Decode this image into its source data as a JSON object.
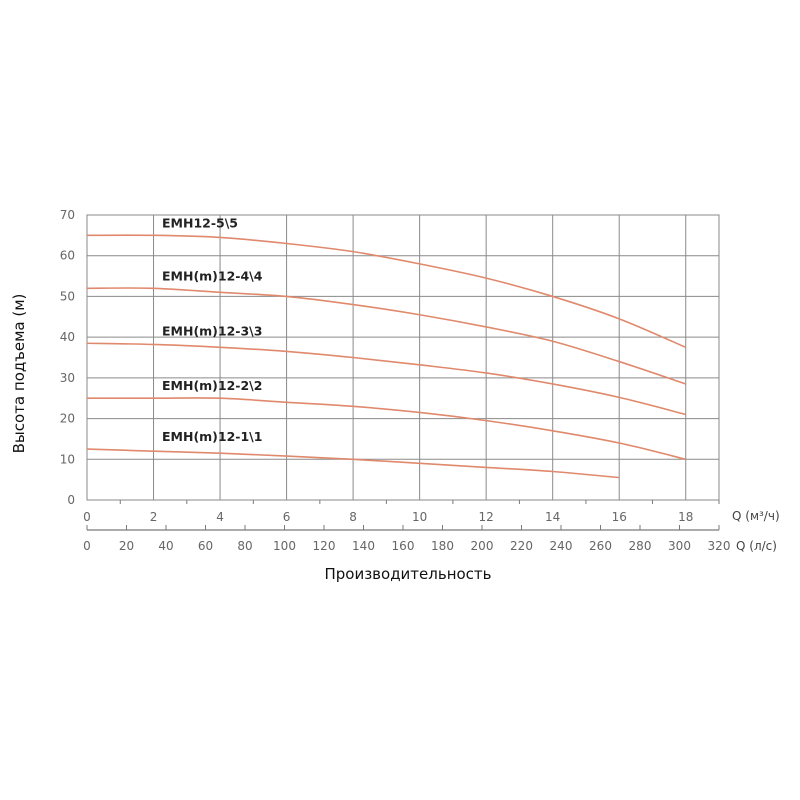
{
  "chart_data": {
    "type": "line",
    "title": "",
    "xlabel": "Производительность",
    "ylabel": "Высота подъема (м)",
    "xlim": [
      0,
      19
    ],
    "ylim": [
      0,
      70
    ],
    "grid": true,
    "series_color": "#e0896c",
    "x_ticks": [
      0,
      2,
      4,
      6,
      8,
      10,
      12,
      14,
      16,
      18
    ],
    "y_ticks": [
      0,
      10,
      20,
      30,
      40,
      50,
      60,
      70
    ],
    "x_axis_unit_label": "Q (м³/ч)",
    "secondary_x_axis": {
      "unit_label": "Q (л/с)",
      "ticks": [
        0,
        20,
        40,
        60,
        80,
        100,
        120,
        140,
        160,
        180,
        200,
        220,
        240,
        260,
        280,
        300,
        320
      ]
    },
    "series": [
      {
        "name": "EMH12-5\\5",
        "x": [
          0,
          2,
          4,
          6,
          8,
          10,
          12,
          14,
          16,
          18
        ],
        "y": [
          65,
          65,
          64.5,
          63,
          61,
          58,
          54.5,
          50,
          44.5,
          37.5
        ]
      },
      {
        "name": "EMH(m)12-4\\4",
        "x": [
          0,
          2,
          4,
          6,
          8,
          10,
          12,
          14,
          16,
          18
        ],
        "y": [
          52,
          52,
          51,
          50,
          48,
          45.5,
          42.5,
          39,
          34,
          28.5
        ]
      },
      {
        "name": "EMH(m)12-3\\3",
        "x": [
          0,
          2,
          4,
          6,
          8,
          10,
          12,
          14,
          16,
          18
        ],
        "y": [
          38.5,
          38.2,
          37.5,
          36.5,
          35,
          33.2,
          31.2,
          28.5,
          25.2,
          21
        ]
      },
      {
        "name": "EMH(m)12-2\\2",
        "x": [
          0,
          2,
          4,
          6,
          8,
          10,
          12,
          14,
          16,
          18
        ],
        "y": [
          25,
          25,
          25,
          24,
          23,
          21.5,
          19.5,
          17,
          14,
          10
        ]
      },
      {
        "name": "EMH(m)12-1\\1",
        "x": [
          0,
          2,
          4,
          6,
          8,
          10,
          12,
          14,
          16
        ],
        "y": [
          12.5,
          12,
          11.5,
          10.8,
          10,
          9,
          8,
          7,
          5.5
        ]
      }
    ]
  }
}
